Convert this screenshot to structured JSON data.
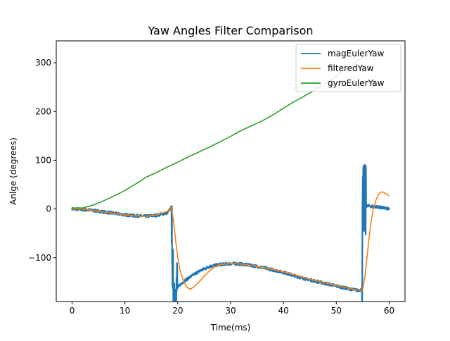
{
  "chart_data": {
    "type": "line",
    "title": "Yaw Angles Filter Comparison",
    "xlabel": "Time(ms)",
    "ylabel": "Anlge (degrees)",
    "xlim": [
      -3,
      63
    ],
    "ylim": [
      -190,
      345
    ],
    "xticks": [
      0,
      10,
      20,
      30,
      40,
      50,
      60
    ],
    "yticks": [
      -100,
      0,
      100,
      200,
      300
    ],
    "ytick_labels": [
      "−100",
      "0",
      "100",
      "200",
      "300"
    ],
    "grid": false,
    "legend": "top-right",
    "series": [
      {
        "name": "magEulerYaw",
        "color": "#1f77b4",
        "noisy": true,
        "x": [
          0,
          2,
          4,
          6,
          8,
          10,
          12,
          14,
          16,
          18,
          18.9,
          19.0,
          19.6,
          20.0,
          20.5,
          21,
          22,
          23,
          24,
          25,
          26,
          28,
          30,
          32,
          34,
          36,
          38,
          40,
          42,
          44,
          46,
          48,
          50,
          52,
          54,
          54.9,
          55.0,
          56,
          58,
          60
        ],
        "y": [
          0,
          -1,
          -3,
          -6,
          -9,
          -12,
          -14,
          -15,
          -13,
          -8,
          5,
          -160,
          -165,
          -162,
          -155,
          -150,
          -142,
          -135,
          -128,
          -123,
          -118,
          -114,
          -112,
          -113,
          -116,
          -120,
          -125,
          -130,
          -137,
          -143,
          -148,
          -153,
          -158,
          -163,
          -167,
          -165,
          8,
          6,
          4,
          0
        ]
      },
      {
        "name": "filteredYaw",
        "color": "#ff7f0e",
        "noisy": false,
        "x": [
          0,
          2,
          4,
          6,
          8,
          10,
          12,
          14,
          16,
          18,
          18.8,
          19.2,
          19.6,
          20.0,
          20.4,
          21.0,
          21.5,
          22.0,
          22.5,
          23.0,
          24.0,
          25.0,
          26.0,
          27.0,
          28.0,
          30.0,
          32.0,
          34.0,
          36.0,
          38.0,
          40.0,
          42.0,
          44.0,
          46.0,
          48.0,
          50.0,
          52.0,
          54.0,
          54.8,
          55.0,
          55.4,
          55.8,
          56.2,
          56.6,
          57.0,
          57.5,
          58.0,
          58.5,
          59.0,
          59.5,
          60.0
        ],
        "y": [
          0,
          0,
          -3,
          -6,
          -9,
          -12,
          -14,
          -15,
          -12,
          -5,
          3,
          -25,
          -65,
          -100,
          -125,
          -145,
          -157,
          -163,
          -164,
          -160,
          -150,
          -138,
          -127,
          -119,
          -114,
          -112,
          -113,
          -116,
          -120,
          -124,
          -129,
          -135,
          -141,
          -147,
          -152,
          -157,
          -162,
          -166,
          -167,
          -165,
          -140,
          -100,
          -60,
          -25,
          0,
          18,
          30,
          35,
          34,
          30,
          27
        ]
      },
      {
        "name": "gyroEulerYaw",
        "color": "#2ca02c",
        "noisy": false,
        "x": [
          0,
          2,
          4,
          6,
          8,
          10,
          12,
          14,
          16,
          18,
          20,
          22,
          24,
          26,
          28,
          30,
          32,
          34,
          36,
          38,
          40,
          42,
          44,
          46,
          48,
          50,
          52,
          54,
          56
        ],
        "y": [
          2,
          2,
          8,
          17,
          27,
          38,
          51,
          65,
          75,
          86,
          96,
          107,
          117,
          127,
          138,
          149,
          161,
          171,
          181,
          193,
          207,
          220,
          232,
          244,
          258,
          272,
          288,
          304,
          318
        ]
      }
    ]
  }
}
